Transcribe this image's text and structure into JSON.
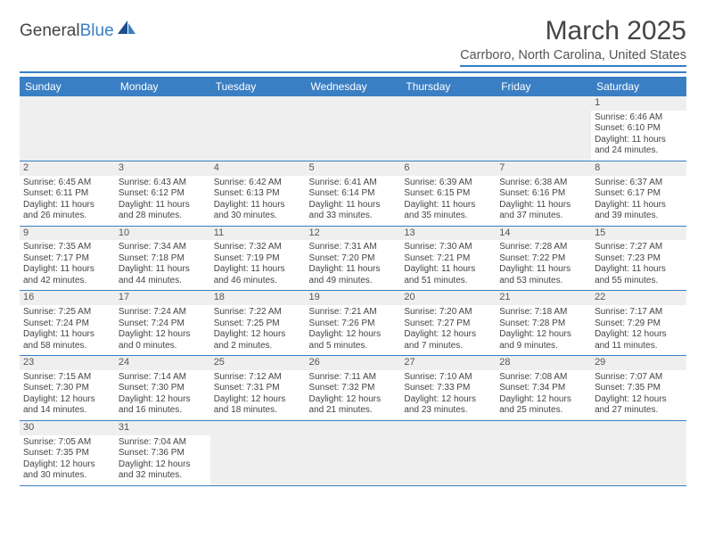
{
  "logo": {
    "word1": "General",
    "word2": "Blue"
  },
  "title": "March 2025",
  "location": "Carrboro, North Carolina, United States",
  "colors": {
    "accent": "#3a7fc4",
    "text": "#444",
    "header_bg": "#3a7fc4",
    "grid_bg": "#efefef"
  },
  "day_headers": [
    "Sunday",
    "Monday",
    "Tuesday",
    "Wednesday",
    "Thursday",
    "Friday",
    "Saturday"
  ],
  "weeks": [
    [
      null,
      null,
      null,
      null,
      null,
      null,
      {
        "n": "1",
        "sr": "Sunrise: 6:46 AM",
        "ss": "Sunset: 6:10 PM",
        "dl": "Daylight: 11 hours and 24 minutes."
      }
    ],
    [
      {
        "n": "2",
        "sr": "Sunrise: 6:45 AM",
        "ss": "Sunset: 6:11 PM",
        "dl": "Daylight: 11 hours and 26 minutes."
      },
      {
        "n": "3",
        "sr": "Sunrise: 6:43 AM",
        "ss": "Sunset: 6:12 PM",
        "dl": "Daylight: 11 hours and 28 minutes."
      },
      {
        "n": "4",
        "sr": "Sunrise: 6:42 AM",
        "ss": "Sunset: 6:13 PM",
        "dl": "Daylight: 11 hours and 30 minutes."
      },
      {
        "n": "5",
        "sr": "Sunrise: 6:41 AM",
        "ss": "Sunset: 6:14 PM",
        "dl": "Daylight: 11 hours and 33 minutes."
      },
      {
        "n": "6",
        "sr": "Sunrise: 6:39 AM",
        "ss": "Sunset: 6:15 PM",
        "dl": "Daylight: 11 hours and 35 minutes."
      },
      {
        "n": "7",
        "sr": "Sunrise: 6:38 AM",
        "ss": "Sunset: 6:16 PM",
        "dl": "Daylight: 11 hours and 37 minutes."
      },
      {
        "n": "8",
        "sr": "Sunrise: 6:37 AM",
        "ss": "Sunset: 6:17 PM",
        "dl": "Daylight: 11 hours and 39 minutes."
      }
    ],
    [
      {
        "n": "9",
        "sr": "Sunrise: 7:35 AM",
        "ss": "Sunset: 7:17 PM",
        "dl": "Daylight: 11 hours and 42 minutes."
      },
      {
        "n": "10",
        "sr": "Sunrise: 7:34 AM",
        "ss": "Sunset: 7:18 PM",
        "dl": "Daylight: 11 hours and 44 minutes."
      },
      {
        "n": "11",
        "sr": "Sunrise: 7:32 AM",
        "ss": "Sunset: 7:19 PM",
        "dl": "Daylight: 11 hours and 46 minutes."
      },
      {
        "n": "12",
        "sr": "Sunrise: 7:31 AM",
        "ss": "Sunset: 7:20 PM",
        "dl": "Daylight: 11 hours and 49 minutes."
      },
      {
        "n": "13",
        "sr": "Sunrise: 7:30 AM",
        "ss": "Sunset: 7:21 PM",
        "dl": "Daylight: 11 hours and 51 minutes."
      },
      {
        "n": "14",
        "sr": "Sunrise: 7:28 AM",
        "ss": "Sunset: 7:22 PM",
        "dl": "Daylight: 11 hours and 53 minutes."
      },
      {
        "n": "15",
        "sr": "Sunrise: 7:27 AM",
        "ss": "Sunset: 7:23 PM",
        "dl": "Daylight: 11 hours and 55 minutes."
      }
    ],
    [
      {
        "n": "16",
        "sr": "Sunrise: 7:25 AM",
        "ss": "Sunset: 7:24 PM",
        "dl": "Daylight: 11 hours and 58 minutes."
      },
      {
        "n": "17",
        "sr": "Sunrise: 7:24 AM",
        "ss": "Sunset: 7:24 PM",
        "dl": "Daylight: 12 hours and 0 minutes."
      },
      {
        "n": "18",
        "sr": "Sunrise: 7:22 AM",
        "ss": "Sunset: 7:25 PM",
        "dl": "Daylight: 12 hours and 2 minutes."
      },
      {
        "n": "19",
        "sr": "Sunrise: 7:21 AM",
        "ss": "Sunset: 7:26 PM",
        "dl": "Daylight: 12 hours and 5 minutes."
      },
      {
        "n": "20",
        "sr": "Sunrise: 7:20 AM",
        "ss": "Sunset: 7:27 PM",
        "dl": "Daylight: 12 hours and 7 minutes."
      },
      {
        "n": "21",
        "sr": "Sunrise: 7:18 AM",
        "ss": "Sunset: 7:28 PM",
        "dl": "Daylight: 12 hours and 9 minutes."
      },
      {
        "n": "22",
        "sr": "Sunrise: 7:17 AM",
        "ss": "Sunset: 7:29 PM",
        "dl": "Daylight: 12 hours and 11 minutes."
      }
    ],
    [
      {
        "n": "23",
        "sr": "Sunrise: 7:15 AM",
        "ss": "Sunset: 7:30 PM",
        "dl": "Daylight: 12 hours and 14 minutes."
      },
      {
        "n": "24",
        "sr": "Sunrise: 7:14 AM",
        "ss": "Sunset: 7:30 PM",
        "dl": "Daylight: 12 hours and 16 minutes."
      },
      {
        "n": "25",
        "sr": "Sunrise: 7:12 AM",
        "ss": "Sunset: 7:31 PM",
        "dl": "Daylight: 12 hours and 18 minutes."
      },
      {
        "n": "26",
        "sr": "Sunrise: 7:11 AM",
        "ss": "Sunset: 7:32 PM",
        "dl": "Daylight: 12 hours and 21 minutes."
      },
      {
        "n": "27",
        "sr": "Sunrise: 7:10 AM",
        "ss": "Sunset: 7:33 PM",
        "dl": "Daylight: 12 hours and 23 minutes."
      },
      {
        "n": "28",
        "sr": "Sunrise: 7:08 AM",
        "ss": "Sunset: 7:34 PM",
        "dl": "Daylight: 12 hours and 25 minutes."
      },
      {
        "n": "29",
        "sr": "Sunrise: 7:07 AM",
        "ss": "Sunset: 7:35 PM",
        "dl": "Daylight: 12 hours and 27 minutes."
      }
    ],
    [
      {
        "n": "30",
        "sr": "Sunrise: 7:05 AM",
        "ss": "Sunset: 7:35 PM",
        "dl": "Daylight: 12 hours and 30 minutes."
      },
      {
        "n": "31",
        "sr": "Sunrise: 7:04 AM",
        "ss": "Sunset: 7:36 PM",
        "dl": "Daylight: 12 hours and 32 minutes."
      },
      null,
      null,
      null,
      null,
      null
    ]
  ]
}
